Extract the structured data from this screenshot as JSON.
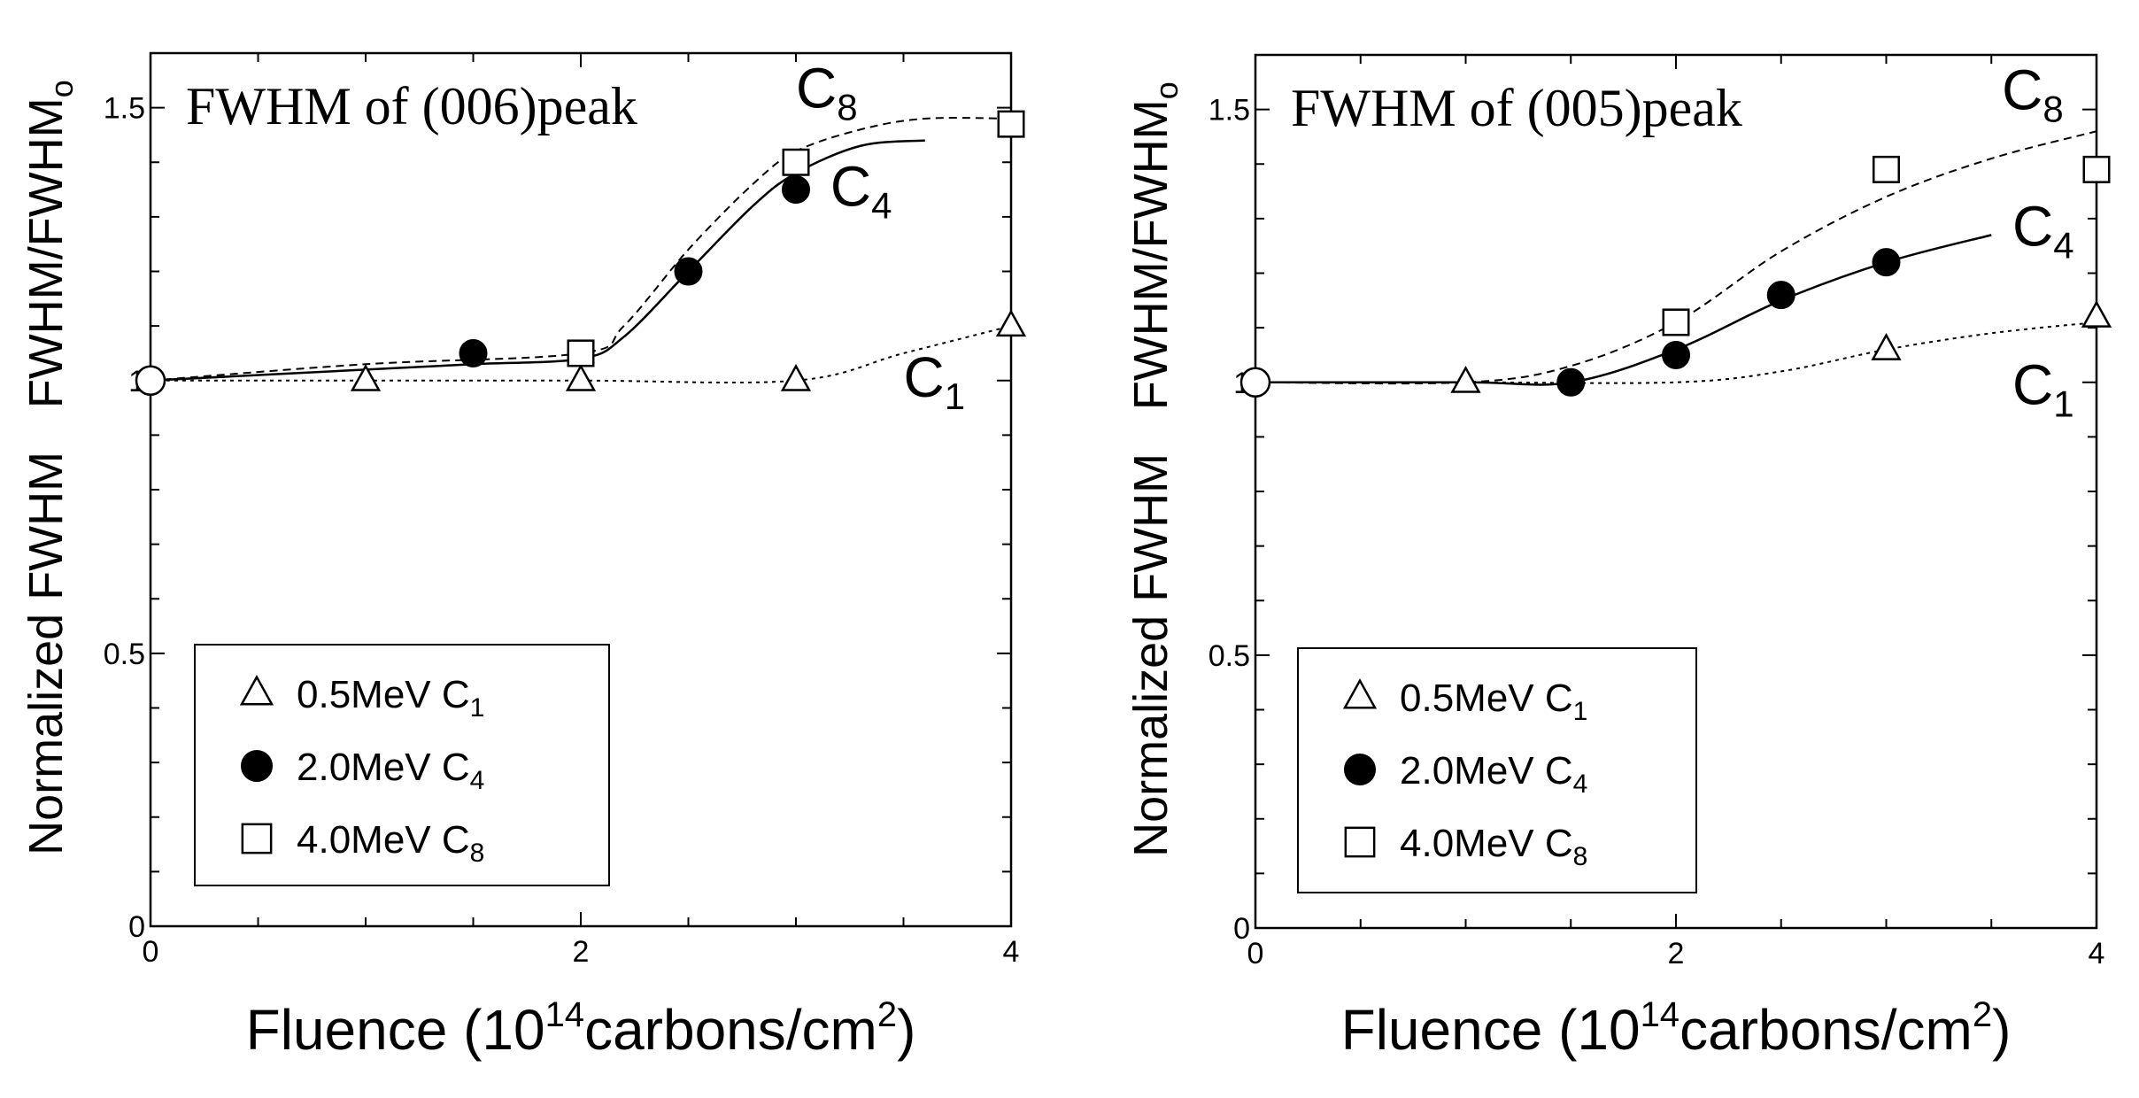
{
  "chart_data": [
    {
      "type": "line",
      "title": "FWHM of (006)peak",
      "xlabel": "Fluence (10^14carbons/cm^2)",
      "xlabel_parts": {
        "pre": "Fluence (10",
        "exp": "14",
        "mid": "carbons/cm",
        "exp2": "2",
        "post": ")"
      },
      "ylabel_top": {
        "main": "FWHM/FWHM",
        "sub": "o"
      },
      "ylabel_bottom": "Normalized FWHM",
      "xlim": [
        0,
        4
      ],
      "ylim": [
        0,
        1.6
      ],
      "x_ticks": [
        "0",
        "2",
        "4"
      ],
      "y_ticks": [
        "0",
        "0.5",
        "1",
        "1.5"
      ],
      "origin_point": {
        "x": 0,
        "y": 1.0
      },
      "series": [
        {
          "name": "C1",
          "label": "0.5MeV C",
          "sub": "1",
          "marker": "triangle",
          "line": "dotted",
          "x": [
            1,
            2,
            3,
            4
          ],
          "y": [
            1.0,
            1.0,
            1.0,
            1.1
          ],
          "curve_x": [
            0,
            1,
            2,
            3,
            3.5,
            4
          ],
          "curve_y": [
            1.0,
            1.0,
            1.0,
            1.0,
            1.05,
            1.1
          ]
        },
        {
          "name": "C4",
          "label": "2.0MeV C",
          "sub": "4",
          "marker": "circle",
          "line": "solid",
          "x": [
            1.5,
            2.5,
            3
          ],
          "y": [
            1.05,
            1.2,
            1.35
          ],
          "curve_x": [
            0,
            1,
            1.5,
            2,
            2.2,
            2.5,
            2.8,
            3,
            3.3,
            3.6
          ],
          "curve_y": [
            1.0,
            1.02,
            1.03,
            1.04,
            1.08,
            1.2,
            1.32,
            1.38,
            1.43,
            1.44
          ]
        },
        {
          "name": "C8",
          "label": "4.0MeV C",
          "sub": "8",
          "marker": "square",
          "line": "dashed",
          "x": [
            2,
            3,
            4
          ],
          "y": [
            1.05,
            1.4,
            1.47
          ],
          "curve_x": [
            0,
            1,
            2,
            2.2,
            2.5,
            2.8,
            3,
            3.3,
            3.6,
            4
          ],
          "curve_y": [
            1.0,
            1.03,
            1.05,
            1.1,
            1.24,
            1.36,
            1.42,
            1.46,
            1.48,
            1.48
          ]
        }
      ],
      "series_labels": [
        {
          "main": "C",
          "sub": "8",
          "x": 3.0,
          "y": 1.5
        },
        {
          "main": "C",
          "sub": "4",
          "x": 3.16,
          "y": 1.32
        },
        {
          "main": "C",
          "sub": "1",
          "x": 3.5,
          "y": 0.97
        }
      ]
    },
    {
      "type": "line",
      "title": "FWHM of (005)peak",
      "xlabel": "Fluence (10^14carbons/cm^2)",
      "xlabel_parts": {
        "pre": "Fluence (10",
        "exp": "14",
        "mid": "carbons/cm",
        "exp2": "2",
        "post": ")"
      },
      "ylabel_top": {
        "main": "FWHM/FWHM",
        "sub": "o"
      },
      "ylabel_bottom": "Normalized FWHM",
      "xlim": [
        0,
        4
      ],
      "ylim": [
        0,
        1.6
      ],
      "x_ticks": [
        "0",
        "2",
        "4"
      ],
      "y_ticks": [
        "0",
        "0.5",
        "1",
        "1.5"
      ],
      "origin_point": {
        "x": 0,
        "y": 1.0
      },
      "series": [
        {
          "name": "C1",
          "label": "0.5MeV C",
          "sub": "1",
          "marker": "triangle",
          "line": "dotted",
          "x": [
            1,
            3,
            4
          ],
          "y": [
            1.0,
            1.06,
            1.12
          ],
          "curve_x": [
            0,
            1,
            2,
            2.5,
            3,
            3.5,
            4
          ],
          "curve_y": [
            1.0,
            1.0,
            1.0,
            1.02,
            1.06,
            1.09,
            1.11
          ]
        },
        {
          "name": "C4",
          "label": "2.0MeV C",
          "sub": "4",
          "marker": "circle",
          "line": "solid",
          "x": [
            1.5,
            2,
            2.5,
            3
          ],
          "y": [
            1.0,
            1.05,
            1.16,
            1.22
          ],
          "curve_x": [
            0,
            1,
            1.5,
            2,
            2.5,
            3,
            3.5
          ],
          "curve_y": [
            1.0,
            1.0,
            1.0,
            1.06,
            1.15,
            1.22,
            1.27
          ]
        },
        {
          "name": "C8",
          "label": "4.0MeV C",
          "sub": "8",
          "marker": "square",
          "line": "dashed",
          "x": [
            2,
            3,
            4
          ],
          "y": [
            1.11,
            1.39,
            1.39
          ],
          "curve_x": [
            0,
            1,
            1.5,
            2,
            2.5,
            3,
            3.5,
            4
          ],
          "curve_y": [
            1.0,
            1.0,
            1.03,
            1.11,
            1.24,
            1.34,
            1.41,
            1.46
          ]
        }
      ],
      "series_labels": [
        {
          "main": "C",
          "sub": "8",
          "x": 3.55,
          "y": 1.5
        },
        {
          "main": "C",
          "sub": "4",
          "x": 3.6,
          "y": 1.25
        },
        {
          "main": "C",
          "sub": "1",
          "x": 3.6,
          "y": 0.96
        }
      ]
    }
  ]
}
